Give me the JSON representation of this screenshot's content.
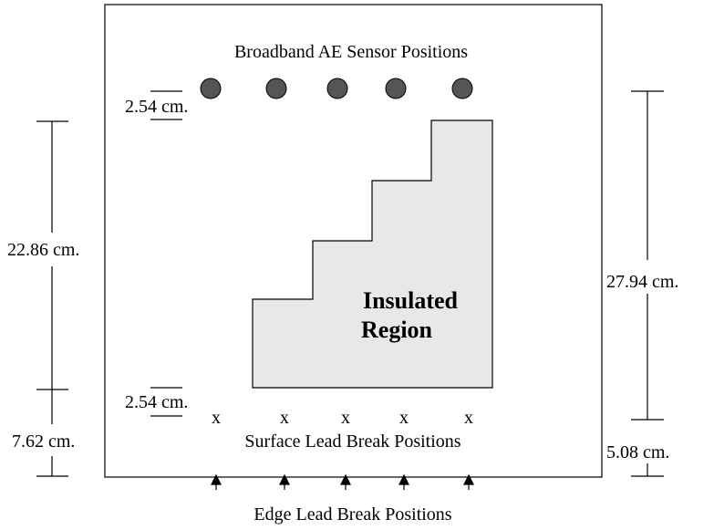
{
  "diagram": {
    "sensor_label": "Broadband AE Sensor Positions",
    "region_label": [
      "Insulated",
      "Region"
    ],
    "surface_label": "Surface Lead Break Positions",
    "edge_label": "Edge Lead Break Positions",
    "surface_mark": "x",
    "dimensions": {
      "sensor_offset": "2.54 cm.",
      "surface_offset": "2.54 cm.",
      "left_long": "22.86 cm.",
      "left_short": "7.62 cm.",
      "right_long": "27.94 cm.",
      "right_short": "5.08 cm."
    }
  }
}
